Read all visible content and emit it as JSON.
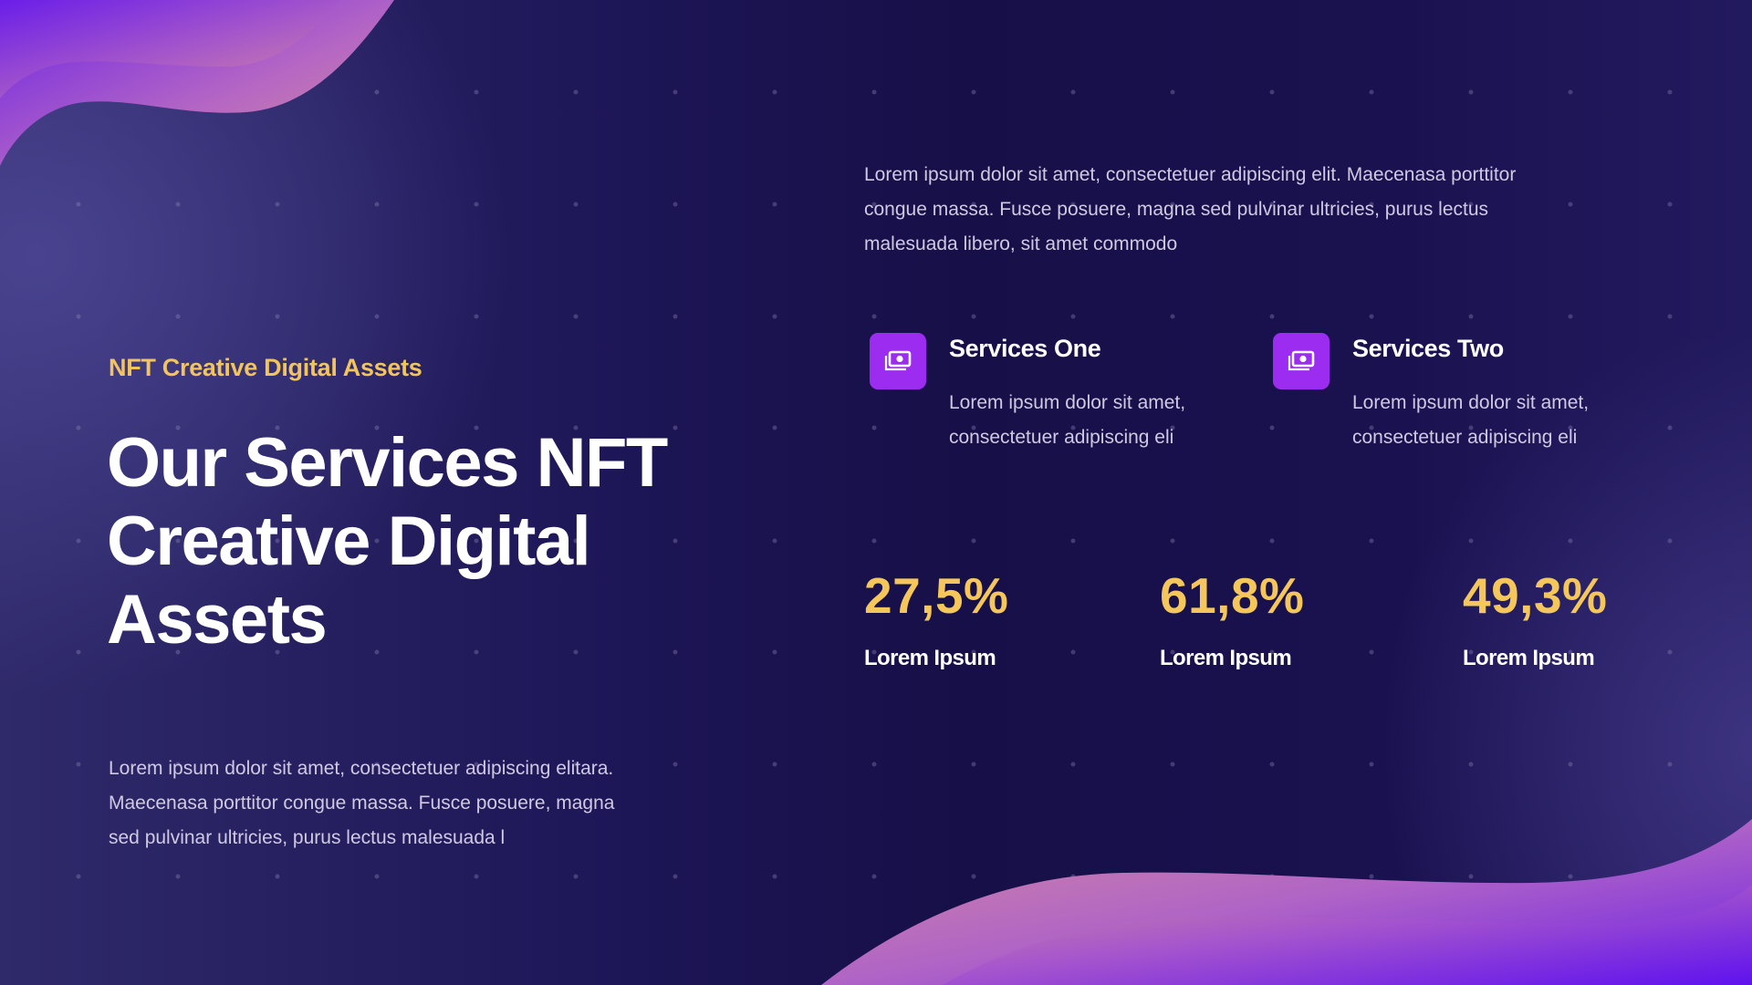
{
  "slide": {
    "subtitle": "NFT Creative Digital Assets",
    "headline": {
      "lines": [
        "Our Services NFT",
        "Creative Digital",
        "Assets"
      ]
    },
    "left_body": {
      "lines": [
        "Lorem ipsum dolor sit amet, consectetuer adipiscing elitara.",
        "Maecenasa porttitor congue massa. Fusce posuere, magna",
        "sed pulvinar ultricies, purus lectus malesuada l"
      ]
    },
    "intro": {
      "lines": [
        "Lorem ipsum dolor sit amet, consectetuer adipiscing elit. Maecenasa porttitor",
        "congue massa.  Fusce posuere, magna sed pulvinar ultricies, purus lectus",
        "malesuada  libero, sit amet commodo"
      ]
    },
    "services": [
      {
        "icon": "money-icon",
        "title": "Services One",
        "desc_lines": [
          "Lorem ipsum dolor sit amet,",
          "consectetuer adipiscing eli"
        ]
      },
      {
        "icon": "money-icon",
        "title": "Services Two",
        "desc_lines": [
          "Lorem ipsum dolor sit amet,",
          "consectetuer adipiscing eli"
        ]
      }
    ],
    "stats": [
      {
        "value": "27,5%",
        "label": "Lorem Ipsum"
      },
      {
        "value": "61,8%",
        "label": "Lorem Ipsum"
      },
      {
        "value": "49,3%",
        "label": "Lorem Ipsum"
      }
    ]
  },
  "colors": {
    "background_dark": "#170f47",
    "background_light": "#3d3780",
    "accent_yellow": "#f5c65a",
    "icon_purple": "#9b2cf0",
    "wave_pink": "#c97aa8",
    "wave_violet": "#6a1ee8",
    "body_text": "#cfc9e2",
    "heading_text": "#ffffff"
  }
}
